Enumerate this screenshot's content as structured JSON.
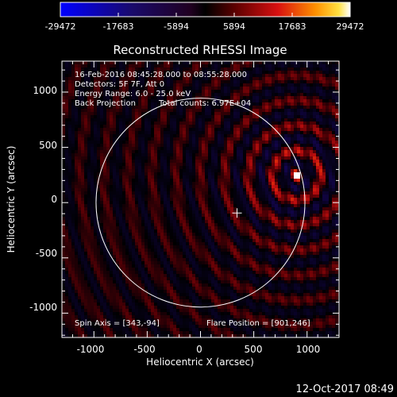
{
  "colorbar": {
    "ticks": [
      "-29472",
      "-17683",
      "-5894",
      "5894",
      "17683",
      "29472"
    ],
    "colormap": "blue-black-red-yellow-white"
  },
  "chart_data": {
    "type": "heatmap",
    "title": "Reconstructed RHESSI Image",
    "xlabel": "Heliocentric X (arcsec)",
    "ylabel": "Heliocentric Y (arcsec)",
    "xlim": [
      -1300,
      1300
    ],
    "ylim": [
      -1220,
      1280
    ],
    "x_ticks": [
      "-1000",
      "-500",
      "0",
      "500",
      "1000"
    ],
    "y_ticks": [
      "-1000",
      "-500",
      "0",
      "500",
      "1000"
    ],
    "color_range": [
      -29472,
      29472
    ],
    "solar_limb": {
      "center": [
        0,
        0
      ],
      "radius": 980
    },
    "spin_axis": [
      343,
      -94
    ],
    "flare_position": [
      901,
      246
    ]
  },
  "annotations": {
    "line1": "16-Feb-2016 08:45:28.000 to 08:55:28.000",
    "line2": "Detectors: 5F 7F, Att 0",
    "line3": "Energy Range: 6.0 - 25.0 keV",
    "line4a": "Back Projection",
    "line4b": "Total counts: 6.97E+04",
    "spin_axis_label": "Spin Axis = [343,-94]",
    "flare_position_label": "Flare Position = [901,246]"
  },
  "footer": {
    "timestamp": "12-Oct-2017 08:49"
  }
}
